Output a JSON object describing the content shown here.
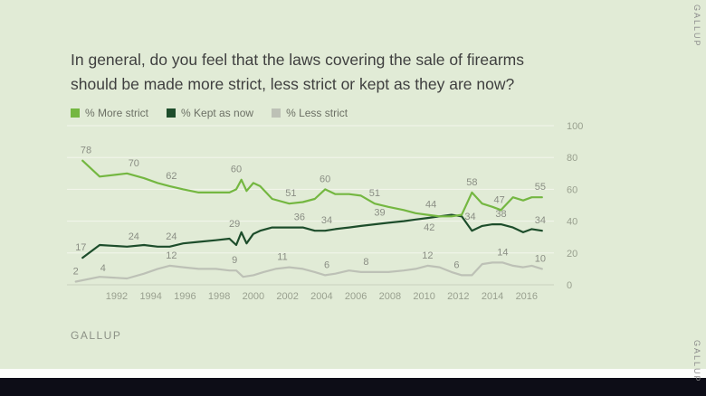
{
  "title": {
    "line1": "In general, do you feel that the laws covering the sale of firearms",
    "line2": "should be made more strict, less strict or kept as they are now?"
  },
  "source": "GALLUP",
  "watermark_top": "GALLUP",
  "watermark_bottom": "GALLUP",
  "colors": {
    "background": "#e1ebd6",
    "white_strip": "#fcfdfb",
    "bottom_bar": "#0d0d17",
    "title_text": "#3f3f3f"
  },
  "chart_data": {
    "type": "line",
    "title": "In general, do you feel that the laws covering the sale of firearms should be made more strict, less strict or kept as they are now?",
    "xlabel": "",
    "ylabel": "",
    "xlim": [
      1989.3,
      2017.6
    ],
    "ylim": [
      0,
      100
    ],
    "x_ticks": [
      1992,
      1994,
      1996,
      1998,
      2000,
      2002,
      2004,
      2006,
      2008,
      2010,
      2012,
      2014,
      2016
    ],
    "y_ticks": [
      0,
      20,
      40,
      60,
      80,
      100
    ],
    "y_axis_side": "right",
    "grid": "horizontal",
    "legend_position": "top-left",
    "style": {
      "grid_line": "#f3f6ec",
      "axis_line": "#c9d0bd",
      "tick_color": "#99a08f",
      "label_color": "#8a8e84"
    },
    "series": [
      {
        "name": "% More strict",
        "color": "#74b741",
        "points": [
          [
            1990,
            78
          ],
          [
            1991,
            68
          ],
          [
            1992.6,
            70
          ],
          [
            1993.6,
            67
          ],
          [
            1994.4,
            64
          ],
          [
            1995.1,
            62
          ],
          [
            1995.9,
            60
          ],
          [
            1996.8,
            58
          ],
          [
            1997.8,
            58
          ],
          [
            1998.6,
            58
          ],
          [
            1999.0,
            60
          ],
          [
            1999.3,
            66
          ],
          [
            1999.6,
            59
          ],
          [
            2000.0,
            64
          ],
          [
            2000.4,
            62
          ],
          [
            2001.1,
            54
          ],
          [
            2002.1,
            51
          ],
          [
            2002.9,
            52
          ],
          [
            2003.6,
            54
          ],
          [
            2004.2,
            60
          ],
          [
            2004.8,
            57
          ],
          [
            2005.6,
            57
          ],
          [
            2006.3,
            56
          ],
          [
            2007.1,
            51
          ],
          [
            2007.9,
            49
          ],
          [
            2008.8,
            47
          ],
          [
            2009.5,
            45
          ],
          [
            2010.2,
            44
          ],
          [
            2010.9,
            43
          ],
          [
            2011.6,
            43
          ],
          [
            2012.2,
            44
          ],
          [
            2012.8,
            58
          ],
          [
            2013.4,
            51
          ],
          [
            2014.0,
            49
          ],
          [
            2014.5,
            47
          ],
          [
            2015.2,
            55
          ],
          [
            2015.8,
            53
          ],
          [
            2016.3,
            55
          ],
          [
            2016.9,
            55
          ]
        ]
      },
      {
        "name": "% Kept as now",
        "color": "#1d4d2b",
        "points": [
          [
            1990,
            17
          ],
          [
            1991,
            25
          ],
          [
            1992.6,
            24
          ],
          [
            1993.6,
            25
          ],
          [
            1994.4,
            24
          ],
          [
            1995.1,
            24
          ],
          [
            1995.9,
            26
          ],
          [
            1996.8,
            27
          ],
          [
            1997.8,
            28
          ],
          [
            1998.6,
            29
          ],
          [
            1999.0,
            25
          ],
          [
            1999.3,
            33
          ],
          [
            1999.6,
            26
          ],
          [
            2000.0,
            32
          ],
          [
            2000.4,
            34
          ],
          [
            2001.1,
            36
          ],
          [
            2002.1,
            36
          ],
          [
            2002.9,
            36
          ],
          [
            2003.6,
            34
          ],
          [
            2004.2,
            34
          ],
          [
            2004.8,
            35
          ],
          [
            2005.6,
            36
          ],
          [
            2006.3,
            37
          ],
          [
            2007.1,
            38
          ],
          [
            2007.9,
            39
          ],
          [
            2008.8,
            40
          ],
          [
            2009.5,
            41
          ],
          [
            2010.2,
            42
          ],
          [
            2010.9,
            43
          ],
          [
            2011.6,
            44
          ],
          [
            2012.2,
            43
          ],
          [
            2012.8,
            34
          ],
          [
            2013.4,
            37
          ],
          [
            2014.0,
            38
          ],
          [
            2014.5,
            38
          ],
          [
            2015.2,
            36
          ],
          [
            2015.8,
            33
          ],
          [
            2016.3,
            35
          ],
          [
            2016.9,
            34
          ]
        ]
      },
      {
        "name": "% Less strict",
        "color": "#bdc1b6",
        "points": [
          [
            1989.6,
            2
          ],
          [
            1991,
            5
          ],
          [
            1992.6,
            4
          ],
          [
            1993.6,
            7
          ],
          [
            1994.4,
            10
          ],
          [
            1995.1,
            12
          ],
          [
            1995.9,
            11
          ],
          [
            1996.8,
            10
          ],
          [
            1997.8,
            10
          ],
          [
            1998.6,
            9
          ],
          [
            1999.0,
            9
          ],
          [
            1999.4,
            5
          ],
          [
            2000.0,
            6
          ],
          [
            2000.6,
            8
          ],
          [
            2001.3,
            10
          ],
          [
            2002.1,
            11
          ],
          [
            2002.9,
            10
          ],
          [
            2003.6,
            8
          ],
          [
            2004.2,
            6
          ],
          [
            2004.8,
            7
          ],
          [
            2005.6,
            9
          ],
          [
            2006.3,
            8
          ],
          [
            2007.1,
            8
          ],
          [
            2007.9,
            8
          ],
          [
            2008.8,
            9
          ],
          [
            2009.5,
            10
          ],
          [
            2010.2,
            12
          ],
          [
            2010.9,
            11
          ],
          [
            2011.6,
            8
          ],
          [
            2012.2,
            6
          ],
          [
            2012.8,
            6
          ],
          [
            2013.4,
            13
          ],
          [
            2014.0,
            14
          ],
          [
            2014.6,
            14
          ],
          [
            2015.2,
            12
          ],
          [
            2015.8,
            11
          ],
          [
            2016.3,
            12
          ],
          [
            2016.9,
            10
          ]
        ]
      }
    ],
    "point_labels": [
      {
        "series": "% More strict",
        "text": "78",
        "year": 1990.2,
        "value": 78
      },
      {
        "series": "% More strict",
        "text": "70",
        "year": 1993.0,
        "value": 70
      },
      {
        "series": "% More strict",
        "text": "62",
        "year": 1995.2,
        "value": 62
      },
      {
        "series": "% More strict",
        "text": "60",
        "year": 1999.0,
        "value": 60,
        "dy": -11
      },
      {
        "series": "% More strict",
        "text": "51",
        "year": 2002.2,
        "value": 51
      },
      {
        "series": "% More strict",
        "text": "60",
        "year": 2004.2,
        "value": 60
      },
      {
        "series": "% More strict",
        "text": "51",
        "year": 2007.1,
        "value": 51
      },
      {
        "series": "% More strict",
        "text": "44",
        "year": 2010.4,
        "value": 44
      },
      {
        "series": "% More strict",
        "text": "58",
        "year": 2012.8,
        "value": 58
      },
      {
        "series": "% More strict",
        "text": "47",
        "year": 2014.4,
        "value": 47
      },
      {
        "series": "% More strict",
        "text": "55",
        "year": 2016.8,
        "value": 55
      },
      {
        "series": "% Kept as now",
        "text": "17",
        "year": 1989.9,
        "value": 17
      },
      {
        "series": "% Kept as now",
        "text": "24",
        "year": 1993.0,
        "value": 24
      },
      {
        "series": "% Kept as now",
        "text": "24",
        "year": 1995.2,
        "value": 24
      },
      {
        "series": "% Kept as now",
        "text": "29",
        "year": 1998.9,
        "value": 29,
        "dy": -5
      },
      {
        "series": "% Kept as now",
        "text": "36",
        "year": 2002.7,
        "value": 36
      },
      {
        "series": "% Kept as now",
        "text": "34",
        "year": 2004.3,
        "value": 34
      },
      {
        "series": "% Kept as now",
        "text": "39",
        "year": 2007.4,
        "value": 39
      },
      {
        "series": "% Kept as now",
        "text": "42",
        "year": 2010.3,
        "value": 42,
        "dy": 22
      },
      {
        "series": "% Kept as now",
        "text": "34",
        "year": 2012.7,
        "value": 34,
        "dy": -4
      },
      {
        "series": "% Kept as now",
        "text": "38",
        "year": 2014.5,
        "value": 38
      },
      {
        "series": "% Kept as now",
        "text": "34",
        "year": 2016.8,
        "value": 34
      },
      {
        "series": "% Less strict",
        "text": "2",
        "year": 1989.6,
        "value": 2
      },
      {
        "series": "% Less strict",
        "text": "4",
        "year": 1991.2,
        "value": 4
      },
      {
        "series": "% Less strict",
        "text": "12",
        "year": 1995.2,
        "value": 12
      },
      {
        "series": "% Less strict",
        "text": "9",
        "year": 1998.9,
        "value": 9
      },
      {
        "series": "% Less strict",
        "text": "11",
        "year": 2001.7,
        "value": 11
      },
      {
        "series": "% Less strict",
        "text": "6",
        "year": 2004.3,
        "value": 6
      },
      {
        "series": "% Less strict",
        "text": "8",
        "year": 2006.6,
        "value": 8
      },
      {
        "series": "% Less strict",
        "text": "12",
        "year": 2010.2,
        "value": 12
      },
      {
        "series": "% Less strict",
        "text": "6",
        "year": 2011.9,
        "value": 6
      },
      {
        "series": "% Less strict",
        "text": "14",
        "year": 2014.6,
        "value": 14
      },
      {
        "series": "% Less strict",
        "text": "10",
        "year": 2016.8,
        "value": 10
      }
    ]
  }
}
